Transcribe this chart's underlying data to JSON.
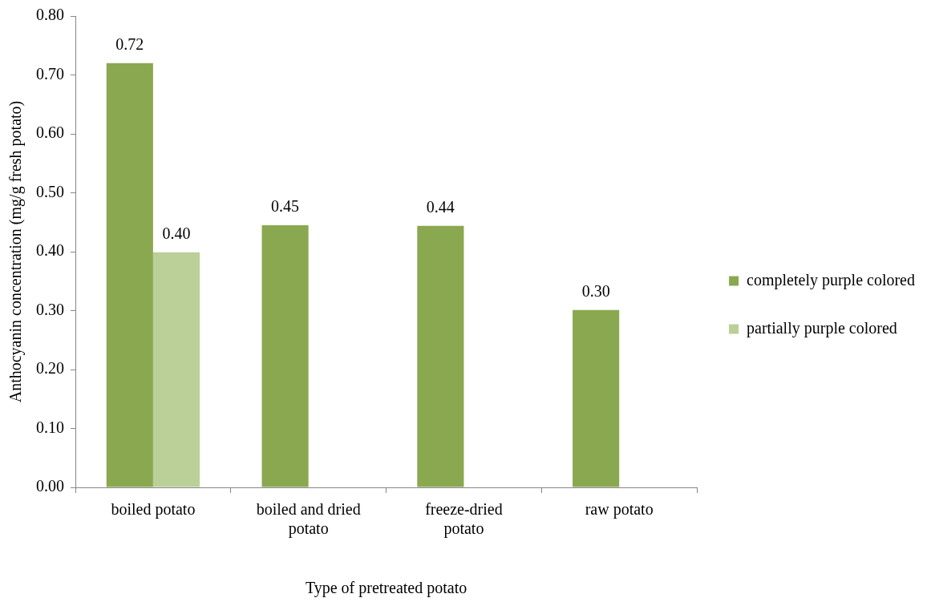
{
  "chart_data": {
    "type": "bar",
    "xlabel": "Type of pretreated potato",
    "ylabel": "Anthocyanin concentration (mg/g fresh potato)",
    "categories": [
      "boiled potato",
      "boiled and dried potato",
      "freeze-dried potato",
      "raw potato"
    ],
    "series": [
      {
        "name": "completely purple colored",
        "color": "#8aa84f",
        "values": [
          0.72,
          0.445,
          0.444,
          0.301
        ],
        "value_labels": [
          "0.72",
          "0.45",
          "0.44",
          "0.30"
        ]
      },
      {
        "name": "partially purple colored",
        "color": "#bbcf98",
        "values": [
          0.399,
          null,
          null,
          null
        ],
        "value_labels": [
          "0.40",
          null,
          null,
          null
        ]
      }
    ],
    "ylim": [
      0,
      0.8
    ],
    "yticks": [
      {
        "value": 0,
        "label": "0.00"
      },
      {
        "value": 0.1,
        "label": "0.10"
      },
      {
        "value": 0.2,
        "label": "0.20"
      },
      {
        "value": 0.3,
        "label": "0.30"
      },
      {
        "value": 0.4,
        "label": "0.40"
      },
      {
        "value": 0.5,
        "label": "0.50"
      },
      {
        "value": 0.6,
        "label": "0.60"
      },
      {
        "value": 0.7,
        "label": "0.70"
      },
      {
        "value": 0.8,
        "label": "0.80"
      }
    ],
    "grid": false,
    "legend": "right"
  }
}
